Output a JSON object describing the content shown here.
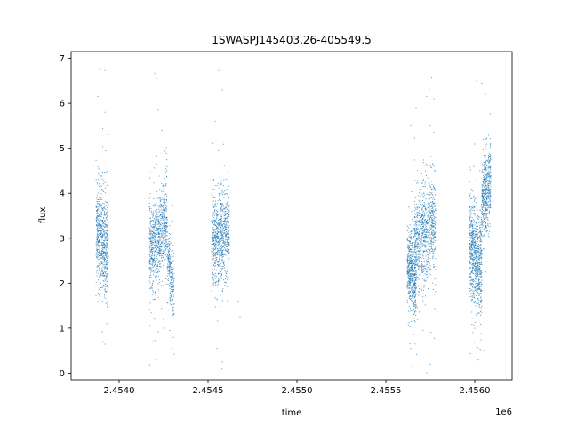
{
  "chart_data": {
    "type": "scatter",
    "title": "1SWASPJ145403.26-405549.5",
    "xlabel": "time",
    "ylabel": "flux",
    "x_offset_label": "1e6",
    "xlim": [
      2.45373,
      2.45621
    ],
    "ylim": [
      -0.15,
      7.15
    ],
    "x_ticks": [
      2.454,
      2.4545,
      2.455,
      2.4555,
      2.456
    ],
    "x_tick_labels": [
      "2.4540",
      "2.4545",
      "2.4550",
      "2.4555",
      "2.4560"
    ],
    "y_ticks": [
      0,
      1,
      2,
      3,
      4,
      5,
      6,
      7
    ],
    "y_tick_labels": [
      "0",
      "1",
      "2",
      "3",
      "4",
      "5",
      "6",
      "7"
    ],
    "grid": false,
    "point_color": "#1f77b4",
    "clusters": [
      {
        "x_start": 2.45387,
        "x_end": 2.45394,
        "y_start": 3.2,
        "y_end": 2.7,
        "spread": 0.55,
        "count": 700
      },
      {
        "x_start": 2.45417,
        "x_end": 2.45427,
        "y_start": 2.7,
        "y_end": 3.4,
        "spread": 0.5,
        "count": 800
      },
      {
        "x_start": 2.45427,
        "x_end": 2.45431,
        "y_start": 2.8,
        "y_end": 1.7,
        "spread": 0.35,
        "count": 250
      },
      {
        "x_start": 2.45452,
        "x_end": 2.45462,
        "y_start": 2.8,
        "y_end": 3.2,
        "spread": 0.5,
        "count": 800
      },
      {
        "x_start": 2.45562,
        "x_end": 2.45567,
        "y_start": 2.5,
        "y_end": 2.0,
        "spread": 0.4,
        "count": 500
      },
      {
        "x_start": 2.45566,
        "x_end": 2.45578,
        "y_start": 2.9,
        "y_end": 3.3,
        "spread": 0.55,
        "count": 900
      },
      {
        "x_start": 2.45597,
        "x_end": 2.45604,
        "y_start": 2.9,
        "y_end": 2.3,
        "spread": 0.55,
        "count": 800
      },
      {
        "x_start": 2.45604,
        "x_end": 2.45609,
        "y_start": 3.8,
        "y_end": 4.3,
        "spread": 0.45,
        "count": 500
      }
    ],
    "outliers": [
      {
        "x": 2.45389,
        "y": 6.75
      },
      {
        "x": 2.45392,
        "y": 6.73
      },
      {
        "x": 2.45388,
        "y": 6.15
      },
      {
        "x": 2.45392,
        "y": 5.8
      },
      {
        "x": 2.45394,
        "y": 5.3
      },
      {
        "x": 2.45393,
        "y": 1.1
      },
      {
        "x": 2.45391,
        "y": 0.7
      },
      {
        "x": 2.4542,
        "y": 6.67
      },
      {
        "x": 2.45421,
        "y": 6.55
      },
      {
        "x": 2.45422,
        "y": 5.85
      },
      {
        "x": 2.45424,
        "y": 5.4
      },
      {
        "x": 2.45419,
        "y": 0.7
      },
      {
        "x": 2.45421,
        "y": 0.3
      },
      {
        "x": 2.4543,
        "y": 0.55
      },
      {
        "x": 2.45456,
        "y": 6.73
      },
      {
        "x": 2.45458,
        "y": 6.3
      },
      {
        "x": 2.45454,
        "y": 5.6
      },
      {
        "x": 2.45455,
        "y": 0.55
      },
      {
        "x": 2.45458,
        "y": 0.25
      },
      {
        "x": 2.45467,
        "y": 1.6
      },
      {
        "x": 2.45468,
        "y": 1.25
      },
      {
        "x": 2.45564,
        "y": 5.5
      },
      {
        "x": 2.45567,
        "y": 5.9
      },
      {
        "x": 2.45565,
        "y": 0.15
      },
      {
        "x": 2.45564,
        "y": 0.55
      },
      {
        "x": 2.45575,
        "y": 0.2
      },
      {
        "x": 2.45577,
        "y": 6.1
      },
      {
        "x": 2.45575,
        "y": 5.5
      },
      {
        "x": 2.45601,
        "y": 6.5
      },
      {
        "x": 2.45604,
        "y": 6.45
      },
      {
        "x": 2.45606,
        "y": 6.2
      },
      {
        "x": 2.45602,
        "y": 0.3
      },
      {
        "x": 2.45605,
        "y": 0.5
      },
      {
        "x": 2.45599,
        "y": 0.9
      }
    ]
  }
}
